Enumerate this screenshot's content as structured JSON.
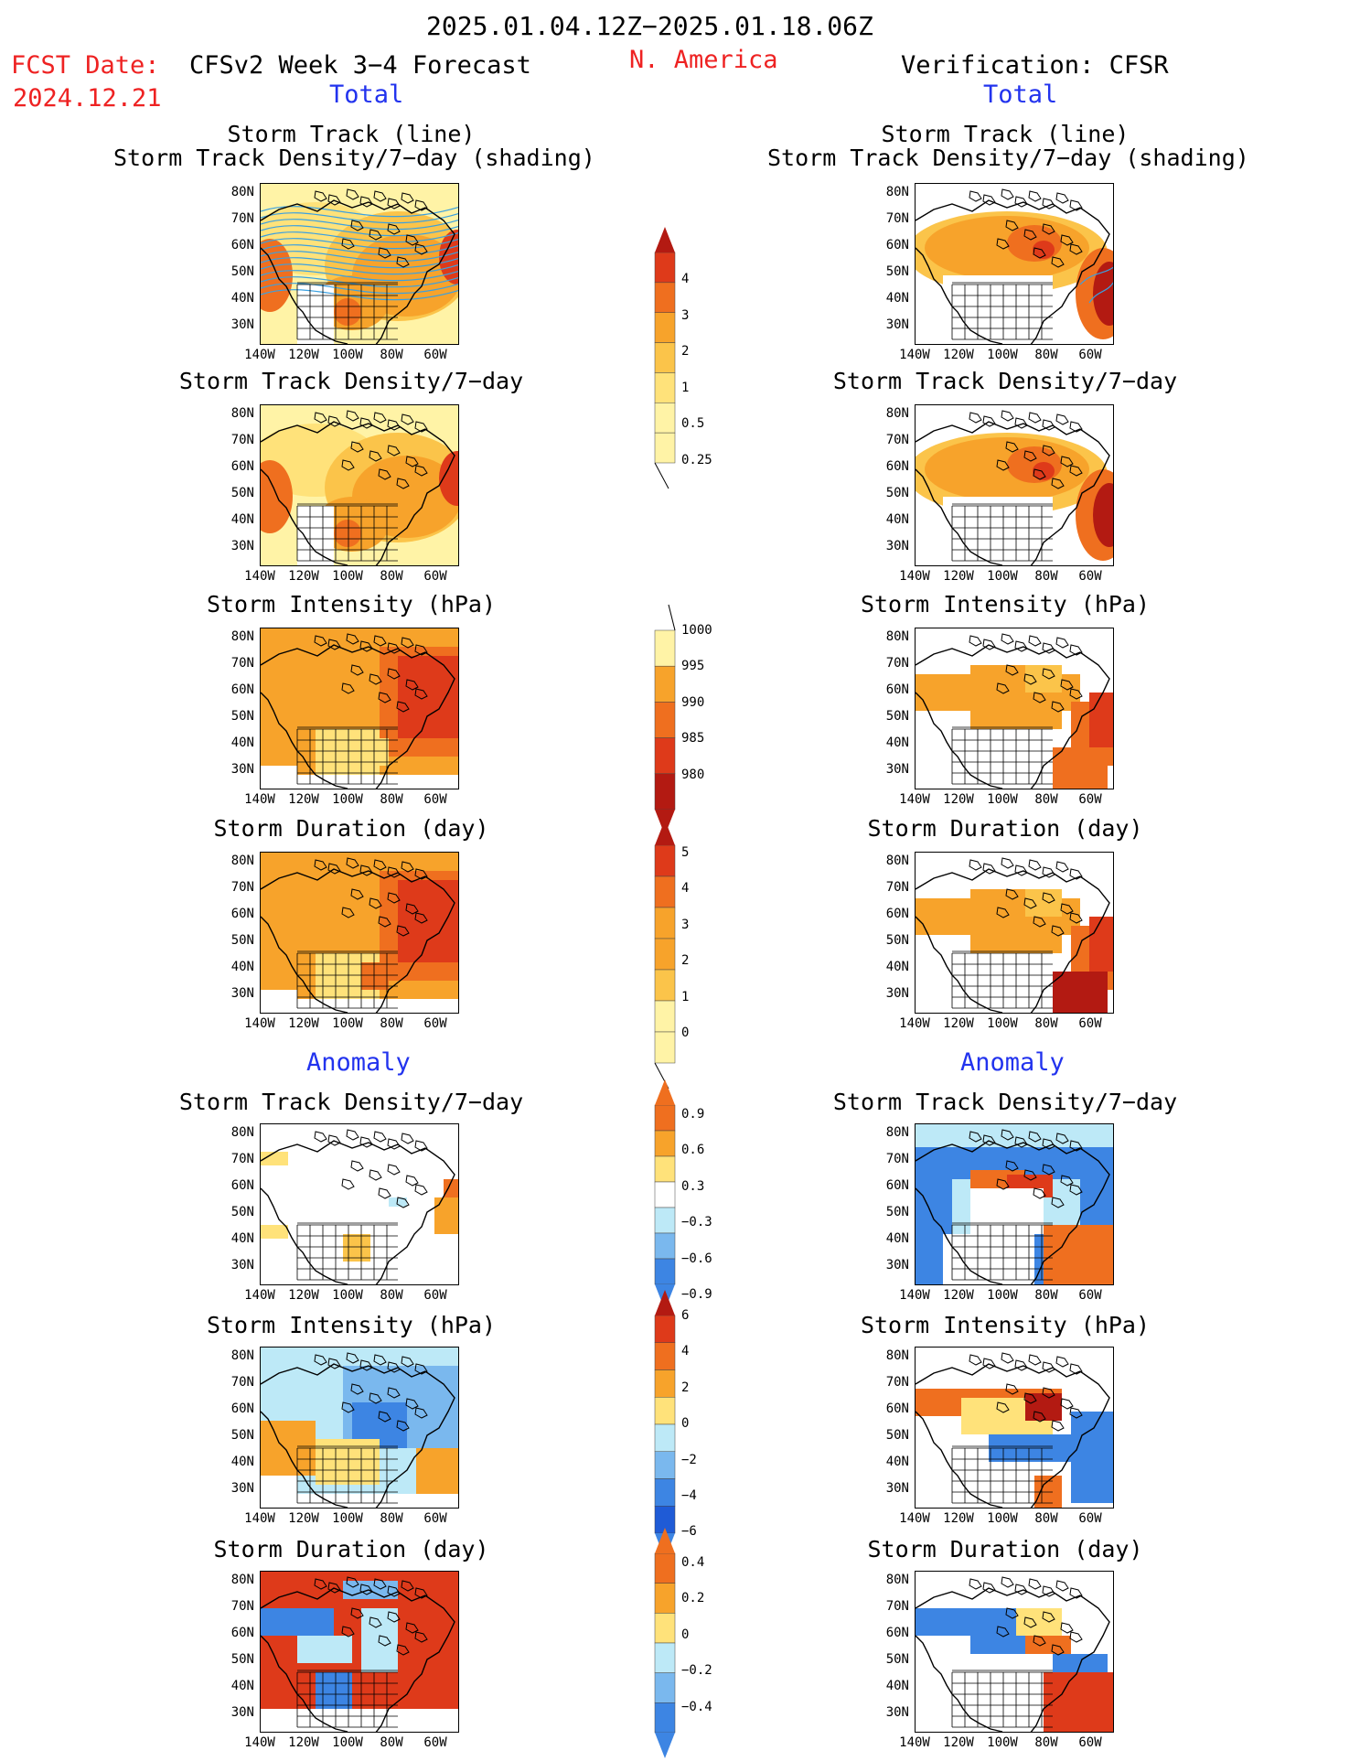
{
  "header": {
    "date_range": "2025.01.04.12Z−2025.01.18.06Z",
    "fcst_date_label": "FCST Date:",
    "fcst_date_value": "2024.12.21",
    "left_title": "CFSv2 Week 3−4 Forecast",
    "region": "N. America",
    "right_title": "Verification: CFSR",
    "total_label": "Total",
    "anomaly_label": "Anomaly"
  },
  "panel_titles": {
    "storm_track_line": "Storm Track (line)",
    "storm_track_shading": "Storm Track Density/7−day (shading)",
    "density": "Storm Track Density/7−day",
    "intensity": "Storm Intensity (hPa)",
    "duration": "Storm Duration (day)"
  },
  "axes": {
    "lat_labels": [
      "80N",
      "70N",
      "60N",
      "50N",
      "40N",
      "30N"
    ],
    "lon_labels": [
      "140W",
      "120W",
      "100W",
      "80W",
      "60W"
    ]
  },
  "colorbars": {
    "density_total": [
      "4",
      "3",
      "2",
      "1",
      "0.5",
      "0.25"
    ],
    "intensity_total": [
      "1000",
      "995",
      "990",
      "985",
      "980"
    ],
    "duration_total": [
      "5",
      "4",
      "3",
      "2",
      "1",
      "0"
    ],
    "density_anom": [
      "0.9",
      "0.6",
      "0.3",
      "−0.3",
      "−0.6",
      "−0.9"
    ],
    "intensity_anom": [
      "6",
      "4",
      "2",
      "0",
      "−2",
      "−4",
      "−6"
    ],
    "duration_anom": [
      "0.4",
      "0.2",
      "0",
      "−0.2",
      "−0.4"
    ]
  },
  "colors": {
    "pale_yellow": "#fff3a6",
    "light_yellow": "#ffe27a",
    "yellow_orange": "#fbc44a",
    "orange": "#f7a32b",
    "dark_orange": "#ef6f1f",
    "red": "#de3a1a",
    "dark_red": "#b31a12",
    "light_blue": "#bde9f7",
    "mid_blue": "#7ab8ee",
    "blue": "#3d85e3",
    "dark_blue": "#1f5bd6",
    "track_blue": "#3aa0e0"
  }
}
